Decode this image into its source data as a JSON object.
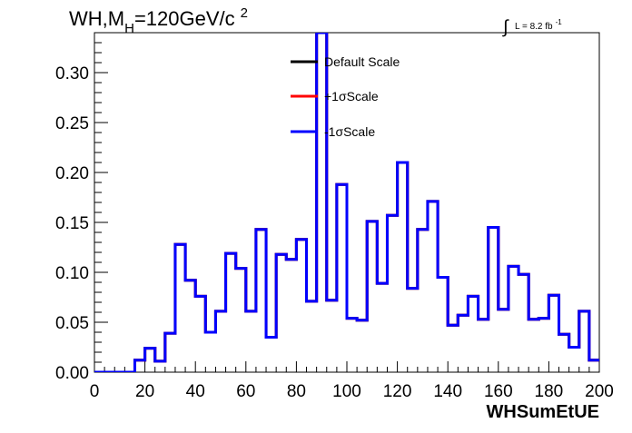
{
  "title": {
    "main": "WH,M",
    "sub": "H",
    "rest": "=120GeV/c",
    "sup": "2"
  },
  "luminosity": {
    "integral": "∫",
    "text": "L = 8.2 fb",
    "sup": "-1"
  },
  "legend": [
    {
      "label": "Default Scale",
      "color": "#000000"
    },
    {
      "label": "+1σScale",
      "color": "#ff0000"
    },
    {
      "label": "-1σScale",
      "color": "#0000ff"
    }
  ],
  "chart_data": {
    "type": "line",
    "style": "step-histogram",
    "xlabel": "WHSumEtUE",
    "ylabel": "",
    "xlim": [
      0,
      200
    ],
    "ylim": [
      0,
      0.34
    ],
    "x_ticks": [
      "0",
      "20",
      "40",
      "60",
      "80",
      "100",
      "120",
      "140",
      "160",
      "180",
      "200"
    ],
    "y_ticks": [
      "0.00",
      "0.05",
      "0.10",
      "0.15",
      "0.20",
      "0.25",
      "0.30"
    ],
    "bin_edges": [
      0,
      4,
      8,
      12,
      16,
      20,
      24,
      28,
      32,
      36,
      40,
      44,
      48,
      52,
      56,
      60,
      64,
      68,
      72,
      76,
      80,
      84,
      88,
      92,
      96,
      100,
      104,
      108,
      112,
      116,
      120,
      124,
      128,
      132,
      136,
      140,
      144,
      148,
      152,
      156,
      160,
      164,
      168,
      172,
      176,
      180,
      184,
      188,
      192,
      196,
      200
    ],
    "series": [
      {
        "name": "Default Scale",
        "color": "#000000",
        "values": [
          0,
          0,
          0,
          0,
          0.012,
          0.024,
          0.011,
          0.039,
          0.128,
          0.092,
          0.076,
          0.04,
          0.061,
          0.119,
          0.104,
          0.061,
          0.143,
          0.035,
          0.118,
          0.113,
          0.133,
          0.071,
          0.34,
          0.072,
          0.188,
          0.054,
          0.052,
          0.151,
          0.089,
          0.157,
          0.21,
          0.084,
          0.143,
          0.171,
          0.095,
          0.047,
          0.057,
          0.076,
          0.053,
          0.145,
          0.063,
          0.106,
          0.098,
          0.053,
          0.054,
          0.077,
          0.038,
          0.025,
          0.061,
          0.012
        ]
      },
      {
        "name": "+1σScale",
        "color": "#ff0000",
        "values": [
          0,
          0,
          0,
          0,
          0.012,
          0.024,
          0.011,
          0.039,
          0.128,
          0.092,
          0.076,
          0.04,
          0.061,
          0.119,
          0.104,
          0.061,
          0.143,
          0.035,
          0.118,
          0.113,
          0.133,
          0.071,
          0.34,
          0.072,
          0.188,
          0.054,
          0.052,
          0.151,
          0.089,
          0.157,
          0.21,
          0.084,
          0.143,
          0.171,
          0.095,
          0.047,
          0.057,
          0.076,
          0.053,
          0.145,
          0.063,
          0.106,
          0.098,
          0.053,
          0.054,
          0.077,
          0.038,
          0.025,
          0.061,
          0.012
        ]
      },
      {
        "name": "-1σScale",
        "color": "#0000ff",
        "values": [
          0,
          0,
          0,
          0,
          0.012,
          0.024,
          0.011,
          0.039,
          0.128,
          0.092,
          0.076,
          0.04,
          0.061,
          0.119,
          0.104,
          0.061,
          0.143,
          0.035,
          0.118,
          0.113,
          0.133,
          0.071,
          0.34,
          0.072,
          0.188,
          0.054,
          0.052,
          0.151,
          0.089,
          0.157,
          0.21,
          0.084,
          0.143,
          0.171,
          0.095,
          0.047,
          0.057,
          0.076,
          0.053,
          0.145,
          0.063,
          0.106,
          0.098,
          0.053,
          0.054,
          0.077,
          0.038,
          0.025,
          0.061,
          0.012
        ]
      }
    ]
  }
}
